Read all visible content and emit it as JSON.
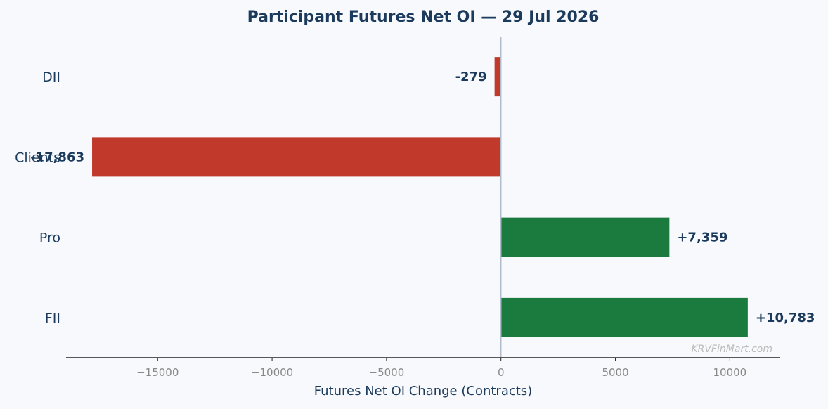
{
  "chart_data": {
    "type": "bar",
    "orientation": "horizontal",
    "title": "Participant Futures Net OI — 29 Jul 2026",
    "xlabel": "Futures Net OI Change (Contracts)",
    "ylabel": "",
    "categories": [
      "DII",
      "Clients",
      "Pro",
      "FII"
    ],
    "values": [
      -279,
      -17863,
      7359,
      10783
    ],
    "data_labels": [
      "-279",
      "-17,863",
      "+7,359",
      "+10,783"
    ],
    "xlim": [
      -19000,
      12200
    ],
    "xticks": [
      -15000,
      -10000,
      -5000,
      0,
      5000,
      10000
    ],
    "xtick_labels": [
      "−15000",
      "−10000",
      "−5000",
      "0",
      "5000",
      "10000"
    ],
    "grid": false,
    "colors": {
      "positive": "#1b7a3d",
      "negative": "#c0392b",
      "zero_line": "#b0bccc",
      "axis": "#222222"
    },
    "watermark": "KRVFinMart.com"
  }
}
